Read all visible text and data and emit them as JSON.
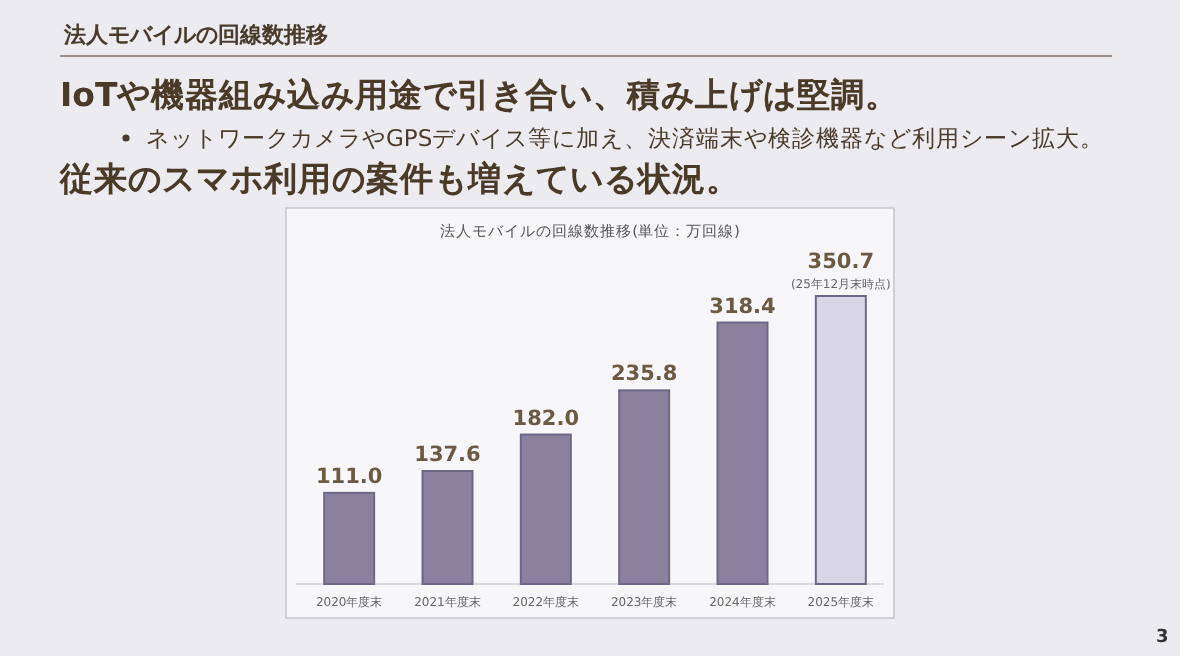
{
  "chart_data": {
    "type": "bar",
    "title": "法人モバイルの回線数推移",
    "subtitle": "IoTや機器組み込み用途で引き合い、積み上げは堅調。",
    "categories": [
      "2020年度末",
      "2021年度末",
      "2022年度末",
      "2023年度末",
      "2024年度末",
      "2025年度末"
    ],
    "values": [
      111.0,
      137.6,
      182.0,
      235.8,
      318.4,
      350.7
    ],
    "colors": [
      "#8a819e",
      "#8a819e",
      "#8a819e",
      "#8a819e",
      "#8a819e",
      "#d9d7e6"
    ],
    "value_labels": [
      "111.0",
      "137.6",
      "182.0",
      "235.8",
      "318.4",
      "350.7"
    ],
    "annotations": [
      "ネットワークカメラやGPSデバイス等に加え、決済端末や検診機器など利用シーン拡大。",
      "従来のスマホ利用の案件も増えている状況。",
      "法人モバイルの回線数推移(単位：万回線)",
      {
        "text": "(25年12月末時点)",
        "x": "2025年度末",
        "y": 350.7
      },
      "3"
    ]
  }
}
